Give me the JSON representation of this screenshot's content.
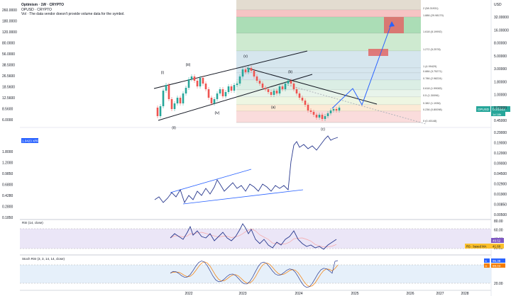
{
  "header": {
    "title": "Optimism · 1W · CRYPTO",
    "sub_symbol": "OPUSD · CRYPTO",
    "notice": "Vol · The data vendor doesn't provide volume data for the symbol."
  },
  "chart_data": {
    "type": "line",
    "main_pane": {
      "left_axis_labels": [
        "260.0000",
        "180.0000",
        "120.0000",
        "80.0000",
        "56.0000",
        "38.5000",
        "26.5600",
        "18.5600",
        "12.5600",
        "8.5600",
        "6.0000"
      ],
      "right_axis_labels": [
        "USD",
        "32.00000",
        "16.00000",
        "8.00000",
        "5.00000",
        "3.00000",
        "1.80000",
        "1.00000",
        "0.70000",
        "0.45000"
      ],
      "price_badge": {
        "symbol": "OPUSD",
        "value": "0.91022",
        "sub": "1d 18h",
        "color": "#26a69a"
      },
      "fib_levels": [
        {
          "label": "2 (58.31931)",
          "color": "#d9d0c0"
        },
        {
          "label": "1.886 (29.98179)",
          "color": "#f3b0b0"
        },
        {
          "label": "1.618 (8.19992)",
          "color": "#8fd19e"
        },
        {
          "label": "1.272 (5.2578)",
          "color": "#bde3c0"
        },
        {
          "label": "1 (4.99429)",
          "color": "#c8dde8"
        },
        {
          "label": "0.886 (3.75271)",
          "color": "#c8dde8"
        },
        {
          "label": "0.786 (2.98224)",
          "color": "#c8dde8"
        },
        {
          "label": "0.618 (1.99083)",
          "color": "#cfe8dc"
        },
        {
          "label": "0.5 (1.30096)",
          "color": "#e0f0e4"
        },
        {
          "label": "0.382 (1.1936)",
          "color": "#e8f3d8"
        },
        {
          "label": "0.236 (0.80098)",
          "color": "#fbe3c8"
        },
        {
          "label": "0 (0.40148)",
          "color": "#f8d0d0"
        }
      ],
      "wave_labels": [
        "(i)",
        "(ii)",
        "(iii)",
        "(iv)",
        "(v)",
        "(a)",
        "(b)",
        "(c)"
      ]
    },
    "ratio_pane": {
      "symbol_badge": "1.0423  XRPUSD",
      "left_axis_labels": [
        "1.8000",
        "1.2000",
        "0.9850",
        "0.6800",
        "0.4280",
        "0.2800",
        "0.1850"
      ],
      "right_axis_labels": [
        "0.29000",
        "0.19000",
        "0.12000",
        "0.09000",
        "0.04500",
        "0.02900",
        "0.01900",
        "0.00850",
        "0.00500"
      ]
    },
    "rsi_pane": {
      "title": "RSI (14, close)",
      "right_axis_labels": [
        "80.00",
        "60.00",
        "40.00",
        "20.00"
      ],
      "badge_value": "49.52",
      "badge_label": "RS · based MA",
      "badge_ma": "41.60"
    },
    "stoch_pane": {
      "title": "Stoch RSI (3, 3, 14, 14, close)",
      "right_axis_labels": [
        "80.00",
        "20.00"
      ],
      "k_value": "95.38",
      "d_value": "89.03"
    },
    "time_axis": [
      "2022",
      "2023",
      "2024",
      "2025",
      "2026",
      "2027",
      "2028"
    ]
  }
}
